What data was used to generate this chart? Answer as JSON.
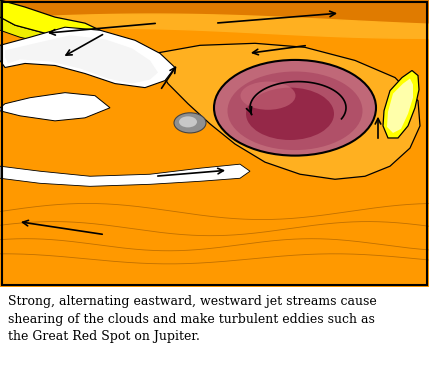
{
  "bg_color": "#FF9900",
  "orange_main": "#FF9900",
  "orange_dark": "#E07B00",
  "orange_light": "#FFB833",
  "white_color": "#FFFFFF",
  "yellow_color": "#FFFF00",
  "red_spot_outer": "#C86878",
  "red_spot_inner": "#A03050",
  "gray_color": "#AAAAAA",
  "caption_line1": "Strong, alternating eastward, westward jet streams cause",
  "caption_line2": "shearing of the clouds and make turbulent eddies such as",
  "caption_line3": "the Great Red Spot on Jupiter.",
  "caption_fontsize": 9,
  "border_color": "#000000",
  "arrow_color": "#000000"
}
